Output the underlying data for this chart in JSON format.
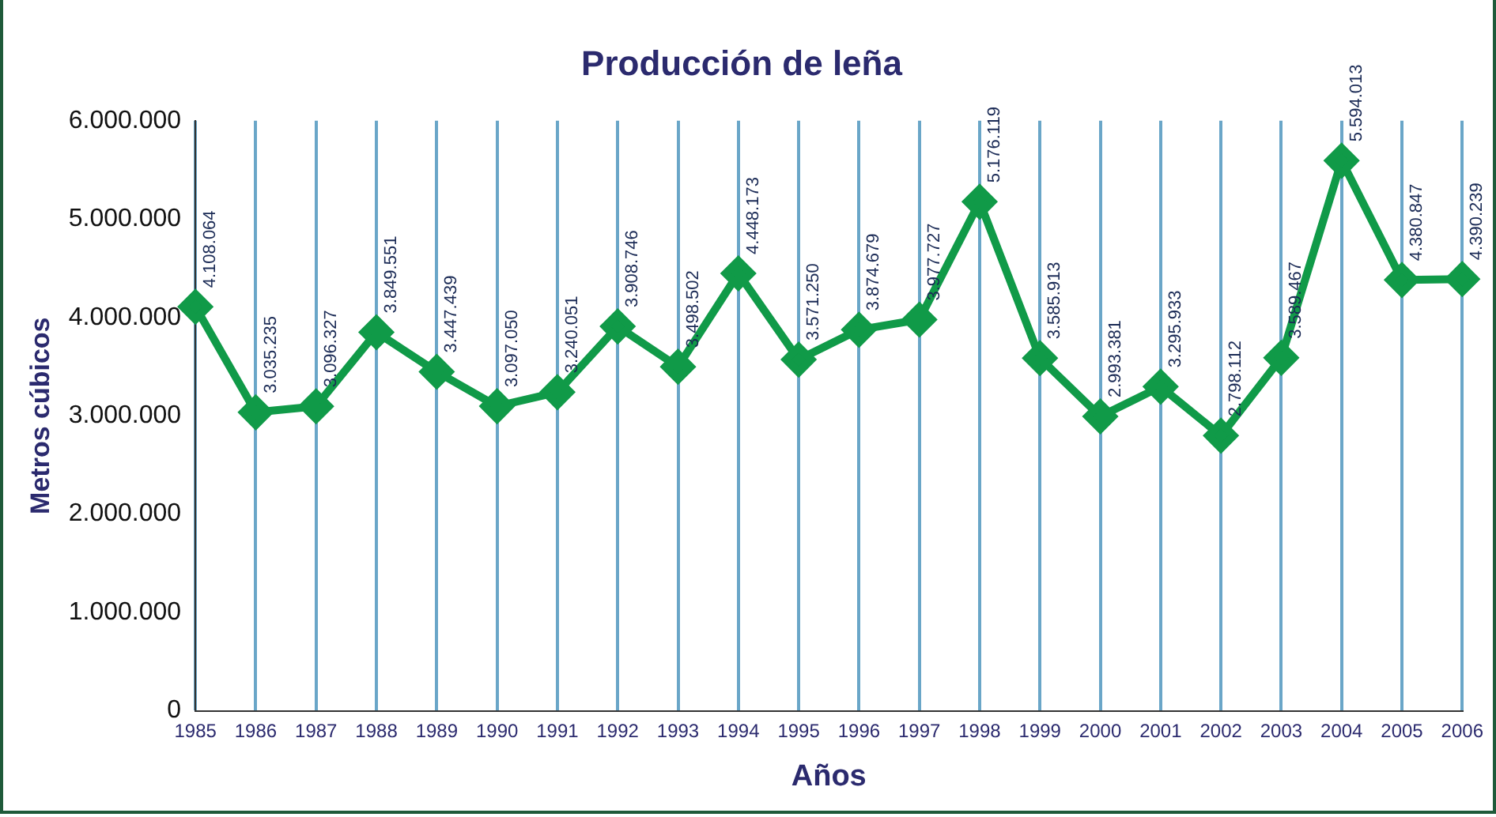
{
  "chart_data": {
    "type": "line",
    "title": "Producción de leña",
    "xlabel": "Años",
    "ylabel": "Metros cúbicos",
    "categories": [
      "1985",
      "1986",
      "1987",
      "1988",
      "1989",
      "1990",
      "1991",
      "1992",
      "1993",
      "1994",
      "1995",
      "1996",
      "1997",
      "1998",
      "1999",
      "2000",
      "2001",
      "2002",
      "2003",
      "2004",
      "2005",
      "2006"
    ],
    "series": [
      {
        "color": "#109a48",
        "values": [
          4108064,
          3035235,
          3096327,
          3849551,
          3447439,
          3097050,
          3240051,
          3908746,
          3498502,
          4448173,
          3571250,
          3874679,
          3977727,
          5176119,
          3585913,
          2993381,
          3295933,
          2798112,
          3589467,
          5594013,
          4380847,
          4390239
        ],
        "value_labels": [
          "4.108.064",
          "3.035.235",
          "3.096.327",
          "3.849.551",
          "3.447.439",
          "3.097.050",
          "3.240.051",
          "3.908.746",
          "3.498.502",
          "4.448.173",
          "3.571.250",
          "3.874.679",
          "3.977.727",
          "5.176.119",
          "3.585.913",
          "2.993.381",
          "3.295.933",
          "2.798.112",
          "3.589.467",
          "5.594.013",
          "4.380.847",
          "4.390.239"
        ]
      }
    ],
    "ylim": [
      0,
      6000000
    ],
    "yticks": [
      {
        "value": 0,
        "label": "0"
      },
      {
        "value": 1000000,
        "label": "1.000.000"
      },
      {
        "value": 2000000,
        "label": "2.000.000"
      },
      {
        "value": 3000000,
        "label": "3.000.000"
      },
      {
        "value": 4000000,
        "label": "4.000.000"
      },
      {
        "value": 5000000,
        "label": "5.000.000"
      },
      {
        "value": 6000000,
        "label": "6.000.000"
      }
    ],
    "grid": "x",
    "legend": false,
    "marker": "diamond",
    "line_style": "solid"
  }
}
